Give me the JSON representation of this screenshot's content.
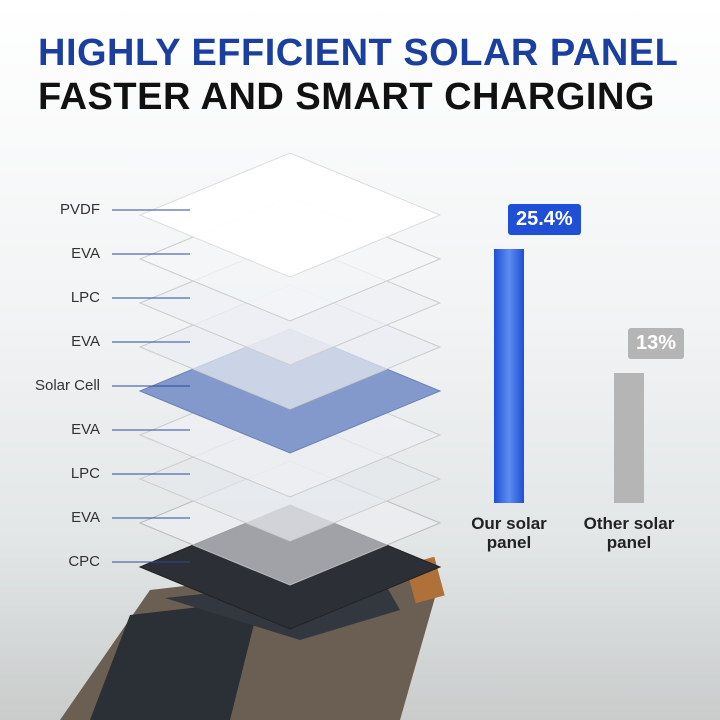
{
  "headline": {
    "line1": "HIGHLY EFFICIENT SOLAR PANEL",
    "line2": "FASTER AND SMART CHARGING"
  },
  "layers": [
    "PVDF",
    "EVA",
    "LPC",
    "EVA",
    "Solar Cell",
    "EVA",
    "LPC",
    "EVA",
    "CPC"
  ],
  "chart_data": {
    "type": "bar",
    "categories": [
      "Our solar panel",
      "Other solar panel"
    ],
    "values": [
      25.4,
      13
    ],
    "value_labels": [
      "25.4%",
      "13%"
    ],
    "colors": [
      "#1f4fd6",
      "#b5b5b5"
    ]
  }
}
